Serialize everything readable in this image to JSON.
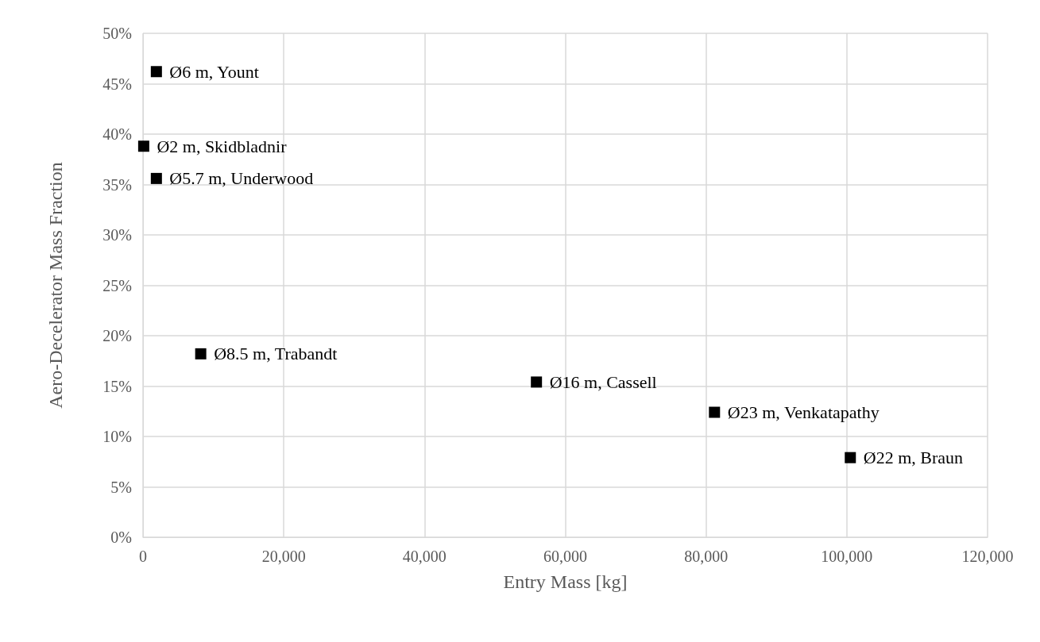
{
  "chart_data": {
    "type": "scatter",
    "xlabel": "Entry Mass [kg]",
    "ylabel": "Aero-Decelerator Mass Fraction",
    "x": [
      1900,
      100,
      1900,
      8200,
      55900,
      81200,
      100500
    ],
    "values": [
      46.2,
      38.8,
      35.6,
      18.2,
      15.4,
      12.4,
      7.9
    ],
    "color": "#000000",
    "marker": "square",
    "grid": true,
    "xlim": [
      0,
      120000
    ],
    "xticks": [
      {
        "value": 0,
        "label": "0"
      },
      {
        "value": 20000,
        "label": "20,000"
      },
      {
        "value": 40000,
        "label": "40,000"
      },
      {
        "value": 60000,
        "label": "60,000"
      },
      {
        "value": 80000,
        "label": "80,000"
      },
      {
        "value": 100000,
        "label": "100,000"
      },
      {
        "value": 120000,
        "label": "120,000"
      }
    ],
    "ylim": [
      0,
      50
    ],
    "yticks": [
      {
        "value": 0,
        "label": "0%"
      },
      {
        "value": 5,
        "label": "5%"
      },
      {
        "value": 10,
        "label": "10%"
      },
      {
        "value": 15,
        "label": "15%"
      },
      {
        "value": 20,
        "label": "20%"
      },
      {
        "value": 25,
        "label": "25%"
      },
      {
        "value": 30,
        "label": "30%"
      },
      {
        "value": 35,
        "label": "35%"
      },
      {
        "value": 40,
        "label": "40%"
      },
      {
        "value": 45,
        "label": "45%"
      },
      {
        "value": 50,
        "label": "50%"
      }
    ],
    "annotations": [
      {
        "text": "Ø6 m, Yount",
        "x": 1900,
        "y": 46.2
      },
      {
        "text": "Ø2 m, Skidbladnir",
        "x": 100,
        "y": 38.8
      },
      {
        "text": "Ø5.7 m, Underwood",
        "x": 1900,
        "y": 35.6
      },
      {
        "text": "Ø8.5 m, Trabandt",
        "x": 8200,
        "y": 18.2
      },
      {
        "text": "Ø16 m, Cassell",
        "x": 55900,
        "y": 15.4
      },
      {
        "text": "Ø23 m, Venkatapathy",
        "x": 81200,
        "y": 12.4
      },
      {
        "text": "Ø22 m, Braun",
        "x": 100500,
        "y": 7.9
      }
    ]
  }
}
